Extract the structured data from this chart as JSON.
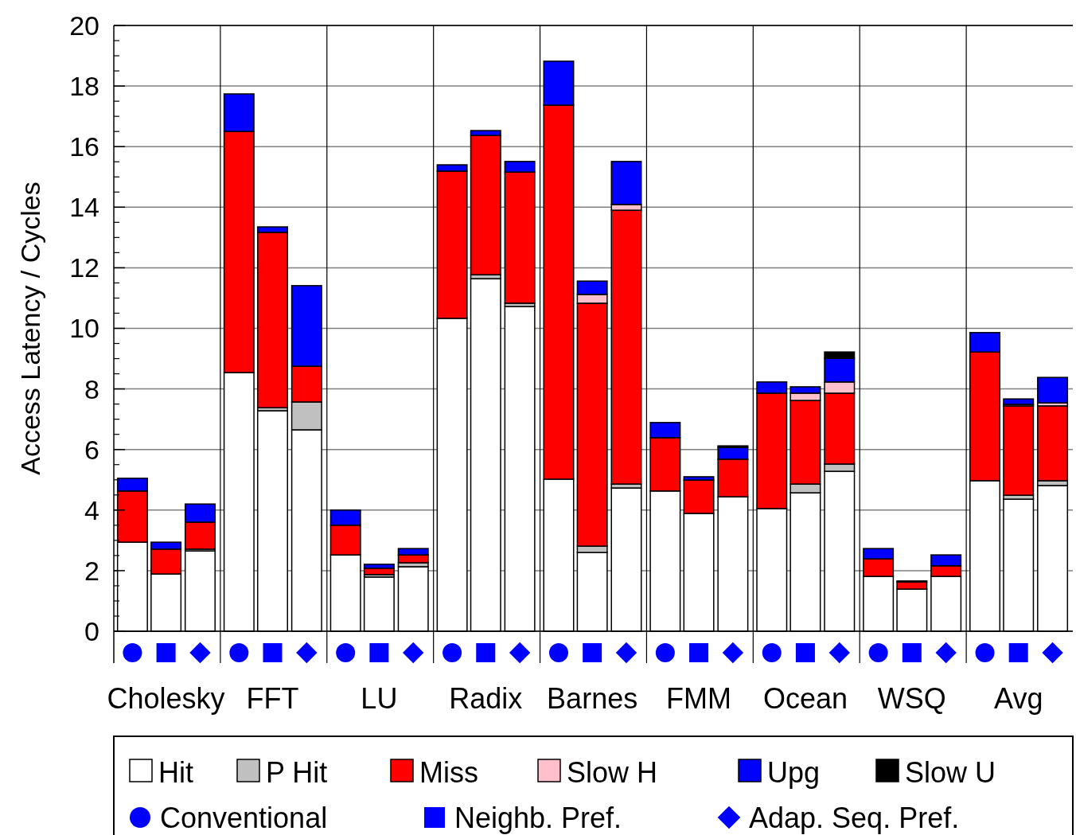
{
  "chart_data": {
    "type": "bar",
    "stacked": true,
    "ylabel": "Access Latency / Cycles",
    "categories": [
      null,
      "Cholesky",
      null,
      null,
      "FFT",
      null,
      null,
      "LU",
      null,
      null,
      "Radix",
      null,
      null,
      "Barnes",
      null,
      null,
      "FMM",
      null,
      null,
      "Ocean",
      null,
      null,
      "WSQ",
      null,
      null,
      "Avg",
      null
    ],
    "series": [
      {
        "name": "Hit",
        "color": "#ffffff",
        "values": [
          2.94,
          1.89,
          2.65,
          8.54,
          7.28,
          6.65,
          2.52,
          1.79,
          2.13,
          10.33,
          11.64,
          10.72,
          5.02,
          2.6,
          4.73,
          4.63,
          3.89,
          4.44,
          4.05,
          4.57,
          5.28,
          1.81,
          1.39,
          1.81,
          4.97,
          4.36,
          4.81
        ]
      },
      {
        "name": "P Hit",
        "color": "#c0c0c0",
        "values": [
          0,
          0,
          0.06,
          0,
          0.1,
          0.92,
          0,
          0.08,
          0.13,
          0,
          0.13,
          0.11,
          0,
          0.21,
          0.13,
          0,
          0,
          0,
          0,
          0.29,
          0.24,
          0,
          0,
          0,
          0,
          0.13,
          0.16
        ]
      },
      {
        "name": "Miss",
        "color": "#ff0000",
        "values": [
          1.69,
          0.82,
          0.89,
          7.96,
          5.79,
          1.18,
          0.98,
          0.21,
          0.26,
          4.86,
          4.6,
          4.33,
          12.35,
          8.02,
          9.04,
          1.76,
          1.1,
          1.24,
          3.81,
          2.76,
          2.34,
          0.58,
          0.24,
          0.35,
          4.25,
          2.95,
          2.47
        ]
      },
      {
        "name": "Slow H",
        "color": "#ffc0cb",
        "values": [
          0,
          0,
          0,
          0,
          0,
          0,
          0,
          0,
          0,
          0,
          0,
          0,
          0,
          0.29,
          0.19,
          0,
          0,
          0,
          0,
          0.24,
          0.37,
          0,
          0,
          0,
          0,
          0.05,
          0.1
        ]
      },
      {
        "name": "Upg",
        "color": "#0000ff",
        "values": [
          0.42,
          0.23,
          0.6,
          1.24,
          0.18,
          2.66,
          0.5,
          0.13,
          0.21,
          0.21,
          0.16,
          0.35,
          1.45,
          0.44,
          1.42,
          0.5,
          0.11,
          0.39,
          0.37,
          0.21,
          0.78,
          0.34,
          0.03,
          0.36,
          0.64,
          0.18,
          0.84
        ]
      },
      {
        "name": "Slow U",
        "color": "#000000",
        "values": [
          0,
          0,
          0,
          0,
          0,
          0,
          0,
          0,
          0,
          0,
          0,
          0,
          0,
          0,
          0,
          0,
          0,
          0.05,
          0,
          0,
          0.21,
          0,
          0,
          0,
          0,
          0,
          0
        ]
      }
    ],
    "ylim": [
      0,
      20
    ],
    "yticks": [
      0,
      2,
      4,
      6,
      8,
      10,
      12,
      14,
      16,
      18,
      20
    ],
    "grid": "y",
    "legend": "bottom",
    "annotations": [
      "Conventional",
      "Neighb. Pref.",
      "Adap. Seq. Pref."
    ]
  }
}
